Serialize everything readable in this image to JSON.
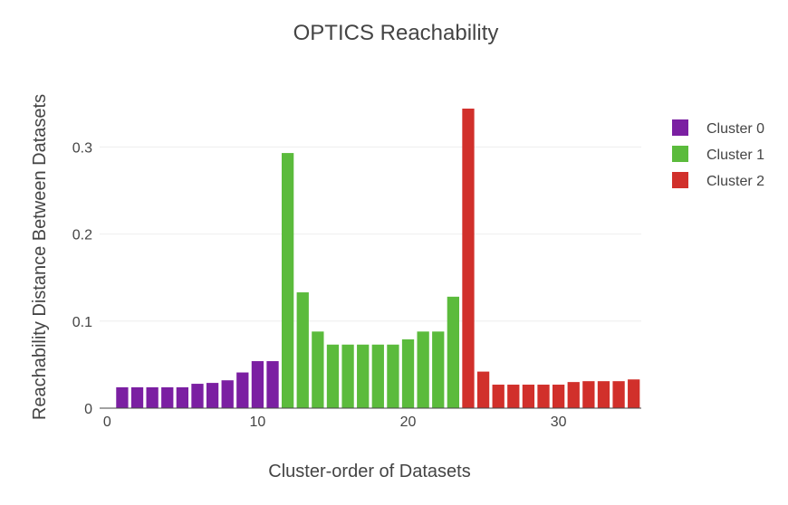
{
  "chart_data": {
    "type": "bar",
    "title": "OPTICS Reachability",
    "xlabel": "Cluster-order of Datasets",
    "ylabel": "Reachability Distance Between Datasets",
    "xlim": [
      -0.5,
      35.5
    ],
    "ylim": [
      0,
      0.37
    ],
    "x_ticks": [
      0,
      10,
      20,
      30
    ],
    "x_tick_labels": [
      "0",
      "10",
      "20",
      "30"
    ],
    "y_ticks": [
      0,
      0.1,
      0.2,
      0.3
    ],
    "y_tick_labels": [
      "0",
      "0.1",
      "0.2",
      "0.3"
    ],
    "grid": "horizontal",
    "legend_position": "top-right",
    "series": [
      {
        "name": "Cluster 0",
        "color": "#7b1fa2",
        "x": [
          1,
          2,
          3,
          4,
          5,
          6,
          7,
          8,
          9,
          10,
          11
        ],
        "values": [
          0.024,
          0.024,
          0.024,
          0.024,
          0.024,
          0.028,
          0.029,
          0.032,
          0.041,
          0.054,
          0.054
        ]
      },
      {
        "name": "Cluster 1",
        "color": "#5bbb3c",
        "x": [
          12,
          13,
          14,
          15,
          16,
          17,
          18,
          19,
          20,
          21,
          22,
          23
        ],
        "values": [
          0.293,
          0.133,
          0.088,
          0.073,
          0.073,
          0.073,
          0.073,
          0.073,
          0.079,
          0.088,
          0.088,
          0.128
        ]
      },
      {
        "name": "Cluster 2",
        "color": "#d1302b",
        "x": [
          24,
          25,
          26,
          27,
          28,
          29,
          30,
          31,
          32,
          33,
          34,
          35
        ],
        "values": [
          0.344,
          0.042,
          0.027,
          0.027,
          0.027,
          0.027,
          0.027,
          0.03,
          0.031,
          0.031,
          0.031,
          0.033
        ]
      }
    ]
  }
}
